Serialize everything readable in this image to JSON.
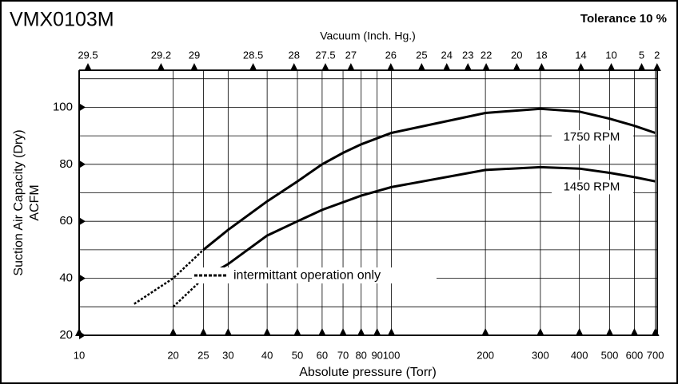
{
  "chart_data": {
    "type": "line",
    "title": "VMX0103M",
    "subtitle": "Tolerance 10 %",
    "x2_label": "Vacuum (Inch. Hg.)",
    "x_label": "Absolute pressure (Torr)",
    "y_label": [
      "Suction Air Capacity (Dry)",
      "ACFM"
    ],
    "annotation": "intermittant operation only",
    "xscale": "log",
    "xlim": [
      10,
      710
    ],
    "ylim": [
      20,
      113
    ],
    "xticks": [
      10,
      20,
      25,
      30,
      40,
      50,
      60,
      70,
      80,
      90,
      100,
      200,
      300,
      400,
      500,
      600,
      700
    ],
    "yticks": [
      20,
      40,
      60,
      80,
      100
    ],
    "ygrid": [
      30,
      50,
      70,
      90,
      110
    ],
    "x2ticks": [
      {
        "value": 10.67,
        "label": "29.5"
      },
      {
        "value": 18.29,
        "label": "29.2"
      },
      {
        "value": 23.37,
        "label": "29"
      },
      {
        "value": 36.07,
        "label": "28.5"
      },
      {
        "value": 48.77,
        "label": "28"
      },
      {
        "value": 61.47,
        "label": "27.5"
      },
      {
        "value": 74.17,
        "label": "27"
      },
      {
        "value": 99.57,
        "label": "26"
      },
      {
        "value": 124.97,
        "label": "25"
      },
      {
        "value": 150.37,
        "label": "24"
      },
      {
        "value": 175.77,
        "label": "23"
      },
      {
        "value": 201.17,
        "label": "22"
      },
      {
        "value": 251.97,
        "label": "20"
      },
      {
        "value": 302.77,
        "label": "18"
      },
      {
        "value": 404.37,
        "label": "14"
      },
      {
        "value": 505.97,
        "label": "10"
      },
      {
        "value": 632.97,
        "label": "5"
      },
      {
        "value": 709.17,
        "label": "2"
      }
    ],
    "grid": true,
    "series": [
      {
        "name": "1750 RPM",
        "color": "#000000",
        "style": "solid",
        "x": [
          25,
          30,
          40,
          50,
          60,
          70,
          80,
          100,
          200,
          300,
          400,
          500,
          600,
          700
        ],
        "values": [
          50,
          57,
          67,
          74,
          80,
          84,
          87,
          91,
          98,
          99.5,
          98.5,
          96,
          93.5,
          91
        ]
      },
      {
        "color": "#000000",
        "style": "dotted",
        "x": [
          15,
          20,
          25
        ],
        "values": [
          31,
          40,
          50
        ]
      },
      {
        "name": "1450 RPM",
        "color": "#000000",
        "style": "solid",
        "x": [
          25,
          30,
          40,
          50,
          60,
          80,
          100,
          200,
          300,
          400,
          500,
          600,
          700
        ],
        "values": [
          40,
          45,
          55,
          60,
          64,
          69,
          72,
          78,
          79,
          78.5,
          77,
          75.5,
          74
        ]
      },
      {
        "color": "#000000",
        "style": "dotted",
        "x": [
          20,
          25
        ],
        "values": [
          30,
          40
        ]
      }
    ]
  }
}
